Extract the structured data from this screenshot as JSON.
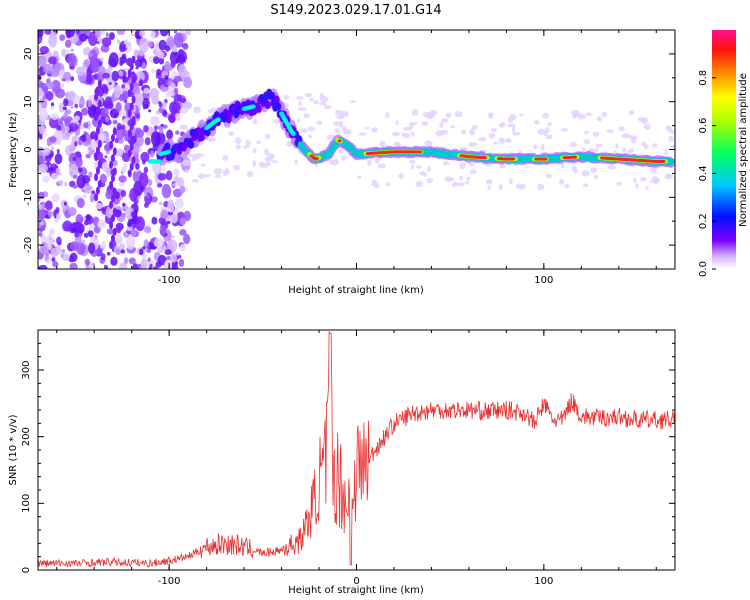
{
  "title": "S149.2023.029.17.01.G14",
  "chart_data": [
    {
      "type": "heatmap",
      "title": "S149.2023.029.17.01.G14",
      "xlabel": "Height of straight line (km)",
      "ylabel": "Frequency (Hz)",
      "xlim": [
        -170,
        170
      ],
      "ylim": [
        -25,
        25
      ],
      "xticks": [
        -100,
        0,
        100
      ],
      "xtick_labels": [
        "-100",
        "",
        "100"
      ],
      "yticks": [
        -20,
        -10,
        0,
        10,
        20
      ],
      "ytick_labels": [
        "-20",
        "-10",
        "0",
        "10",
        "20"
      ],
      "colorbar": {
        "label": "Normalized spectral amplitude",
        "range": [
          0,
          1
        ],
        "ticks": [
          0.0,
          0.2,
          0.4,
          0.6,
          0.8
        ],
        "tick_labels": [
          "0.0",
          "0.2",
          "0.4",
          "0.6",
          "0.8"
        ]
      },
      "ridge": {
        "x": [
          -105,
          -95,
          -85,
          -75,
          -65,
          -55,
          -45,
          -35,
          -28,
          -22,
          -15,
          -10,
          -5,
          0,
          20,
          40,
          60,
          80,
          100,
          120,
          140,
          160,
          168
        ],
        "y": [
          -1,
          0,
          3,
          6,
          8,
          9,
          11,
          4,
          0,
          -2,
          -1,
          2,
          1,
          -1,
          -0.5,
          -0.5,
          -1.5,
          -2,
          -2,
          -1.5,
          -2,
          -2.5,
          -2.5
        ]
      },
      "grid": false
    },
    {
      "type": "line",
      "xlabel": "Height of straight line (km)",
      "ylabel": "SNR (10 * v/v)",
      "xlim": [
        -170,
        170
      ],
      "ylim": [
        0,
        360
      ],
      "xticks": [
        -100,
        0,
        100
      ],
      "xtick_labels": [
        "-100",
        "0",
        "100"
      ],
      "yticks": [
        0,
        100,
        200,
        300
      ],
      "ytick_labels": [
        "0",
        "100",
        "200",
        "300"
      ],
      "color": "#e83030",
      "series": [
        {
          "x": [
            -170,
            -150,
            -130,
            -110,
            -100,
            -90,
            -80,
            -70,
            -60,
            -50,
            -40,
            -30,
            -25,
            -22,
            -20,
            -17,
            -15,
            -14,
            -13,
            -10,
            -7,
            -5,
            -3,
            0,
            5,
            10,
            15,
            20,
            30,
            40,
            50,
            60,
            70,
            80,
            90,
            95,
            100,
            105,
            110,
            115,
            120,
            130,
            140,
            150,
            160,
            170
          ],
          "values": [
            10,
            10,
            12,
            10,
            14,
            20,
            35,
            40,
            35,
            25,
            30,
            45,
            80,
            110,
            130,
            150,
            200,
            355,
            150,
            140,
            120,
            90,
            140,
            150,
            160,
            180,
            200,
            220,
            235,
            240,
            240,
            240,
            238,
            240,
            235,
            220,
            250,
            225,
            225,
            255,
            230,
            228,
            230,
            225,
            225,
            225
          ]
        }
      ],
      "grid": false
    }
  ]
}
